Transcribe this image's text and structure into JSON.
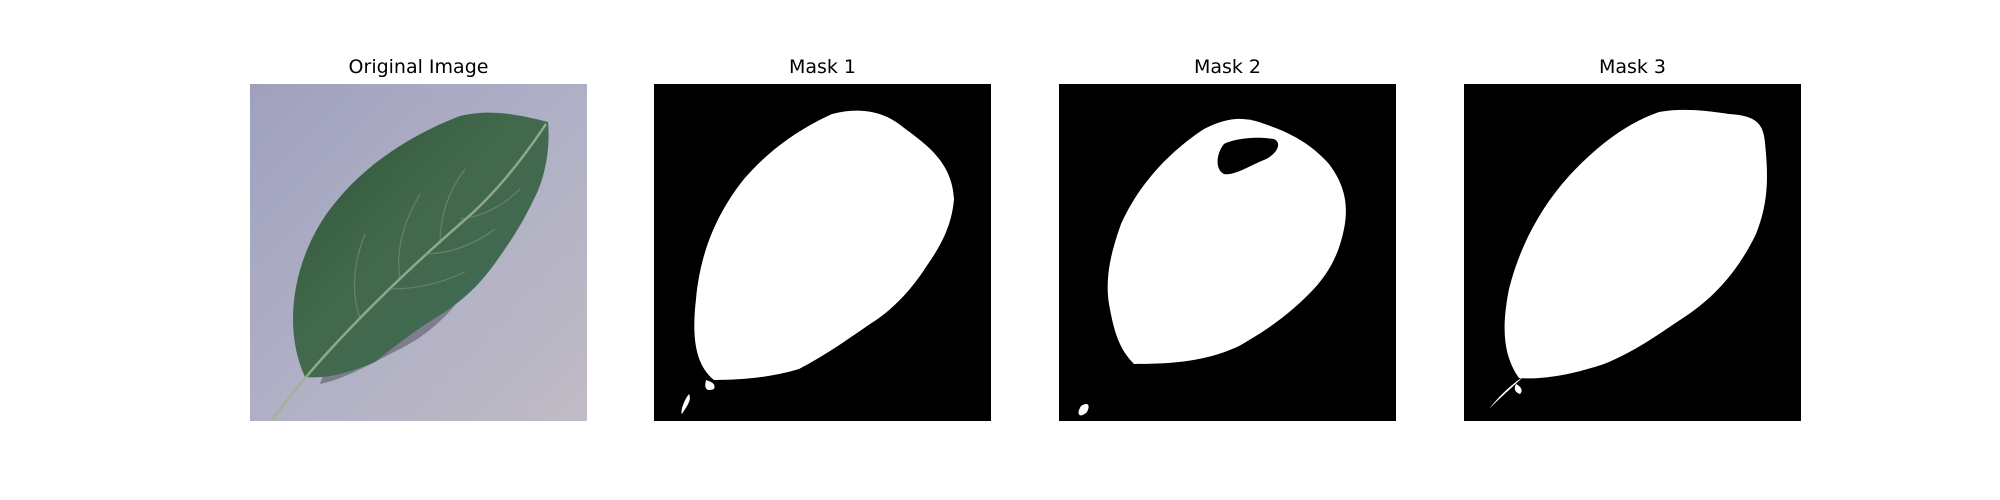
{
  "figure": {
    "panels": [
      {
        "title": "Original Image",
        "kind": "photo",
        "subject": "leaf-photo"
      },
      {
        "title": "Mask 1",
        "kind": "mask"
      },
      {
        "title": "Mask 2",
        "kind": "mask"
      },
      {
        "title": "Mask 3",
        "kind": "mask"
      }
    ]
  },
  "colors": {
    "figure_background": "#ffffff",
    "mask_background": "#000000",
    "mask_foreground": "#ffffff",
    "photo_surface": "#a6a7c0",
    "leaf_green": "#3f6446"
  }
}
